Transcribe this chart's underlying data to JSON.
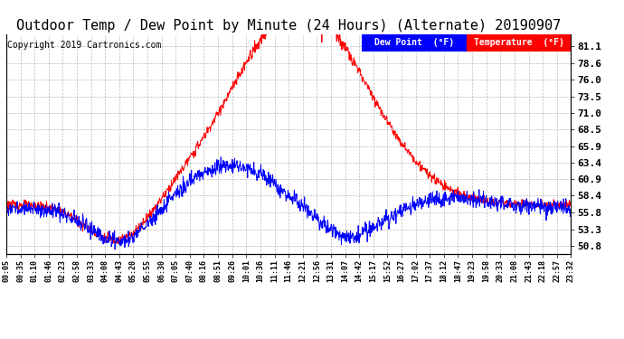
{
  "title": "Outdoor Temp / Dew Point by Minute (24 Hours) (Alternate) 20190907",
  "copyright": "Copyright 2019 Cartronics.com",
  "yticks": [
    50.8,
    53.3,
    55.8,
    58.4,
    60.9,
    63.4,
    65.9,
    68.5,
    71.0,
    73.5,
    76.0,
    78.6,
    81.1
  ],
  "ylim": [
    49.5,
    83.0
  ],
  "xtick_labels": [
    "00:05",
    "00:35",
    "01:10",
    "01:46",
    "02:23",
    "02:58",
    "03:33",
    "04:08",
    "04:43",
    "05:20",
    "05:55",
    "06:30",
    "07:05",
    "07:40",
    "08:16",
    "08:51",
    "09:26",
    "10:01",
    "10:36",
    "11:11",
    "11:46",
    "12:21",
    "12:56",
    "13:31",
    "14:07",
    "14:42",
    "15:17",
    "15:52",
    "16:27",
    "17:02",
    "17:37",
    "18:12",
    "18:47",
    "19:23",
    "19:58",
    "20:33",
    "21:08",
    "21:43",
    "22:18",
    "22:57",
    "23:32"
  ],
  "temp_color": "#ff0000",
  "dew_color": "#0000ff",
  "bg_color": "#ffffff",
  "grid_color": "#aaaaaa",
  "title_fontsize": 11,
  "copyright_fontsize": 7,
  "legend_dew_label": "Dew Point  (°F)",
  "legend_temp_label": "Temperature  (°F)"
}
